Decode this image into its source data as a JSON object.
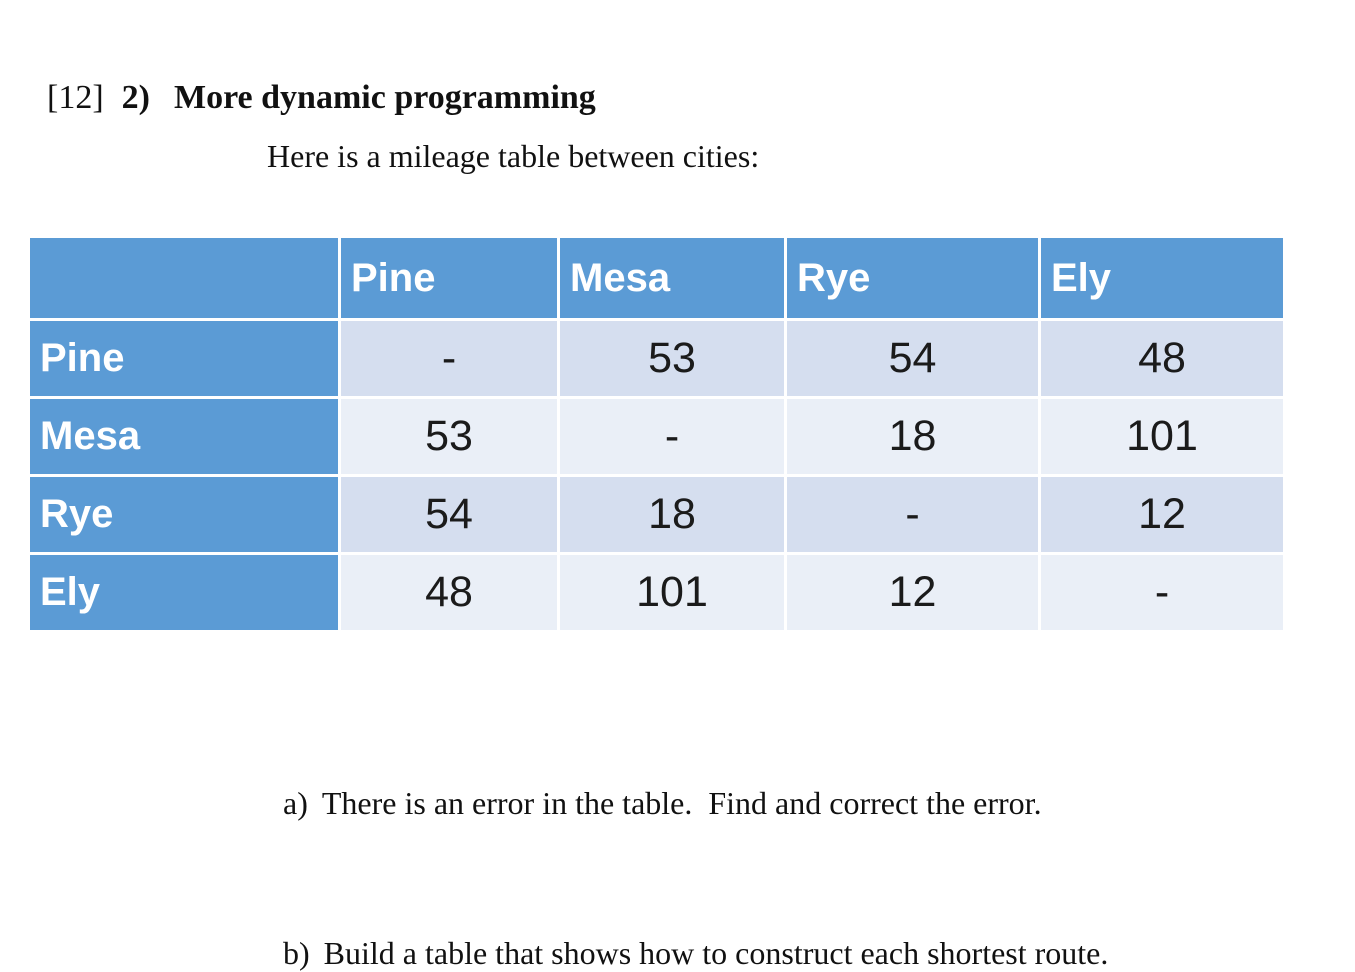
{
  "heading": {
    "points": "[12]",
    "number": "2)",
    "title": "More dynamic programming"
  },
  "intro": "Here is a mileage table between cities:",
  "mileage_table": {
    "header": [
      "",
      "Pine",
      "Mesa",
      "Rye",
      "Ely"
    ],
    "rows": [
      {
        "label": "Pine",
        "values": [
          "-",
          "53",
          "54",
          "48"
        ]
      },
      {
        "label": "Mesa",
        "values": [
          "53",
          "-",
          "18",
          "101"
        ]
      },
      {
        "label": "Rye",
        "values": [
          "54",
          "18",
          "-",
          "12"
        ]
      },
      {
        "label": "Ely",
        "values": [
          "48",
          "101",
          "12",
          "-"
        ]
      }
    ],
    "colors": {
      "header_bg": "#5b9bd5",
      "header_text": "#ffffff",
      "band_dark": "#d5deef",
      "band_light": "#eaeff7",
      "cell_text": "#1b1b1b"
    }
  },
  "questions": [
    {
      "label": "a)",
      "text": "There is an error in the table.  Find and correct the error."
    },
    {
      "label": "b)",
      "text": "Build a table that shows how to construct each shortest route."
    }
  ]
}
